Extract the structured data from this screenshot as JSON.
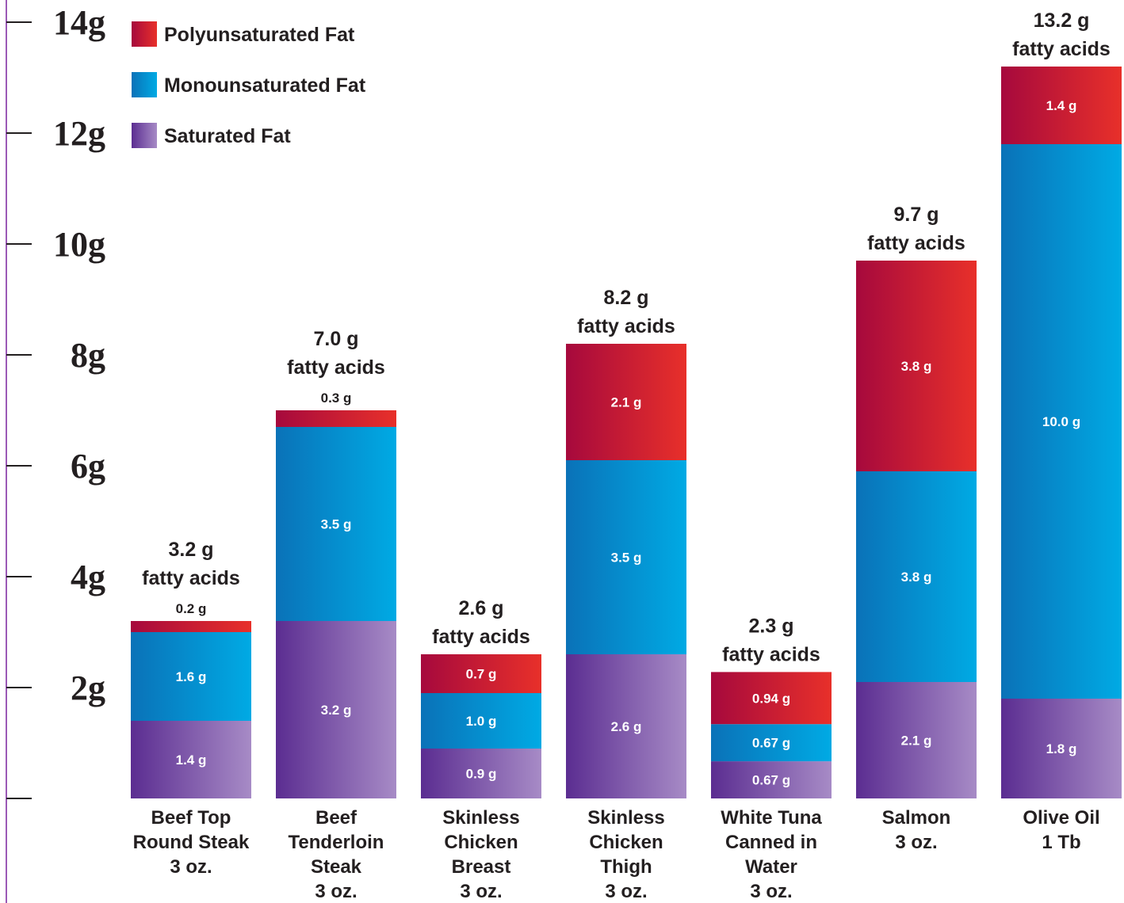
{
  "chart_data": {
    "type": "bar",
    "stacked": true,
    "title": "",
    "xlabel": "",
    "ylabel": "",
    "ylim": [
      0,
      14
    ],
    "ytick_labels": [
      "2g",
      "4g",
      "6g",
      "8g",
      "10g",
      "12g",
      "14g"
    ],
    "grid": false,
    "legend_position": "top-left",
    "categories": [
      [
        "Beef Top",
        "Round Steak",
        "3 oz."
      ],
      [
        "Beef",
        "Tenderloin",
        "Steak",
        "3 oz."
      ],
      [
        "Skinless",
        "Chicken",
        "Breast",
        "3 oz."
      ],
      [
        "Skinless",
        "Chicken",
        "Thigh",
        "3 oz."
      ],
      [
        "White Tuna",
        "Canned in",
        "Water",
        "3 oz."
      ],
      [
        "Salmon",
        "3 oz."
      ],
      [
        "Olive Oil",
        "1 Tb"
      ]
    ],
    "series": [
      {
        "name": "Saturated Fat",
        "color_dark": "#5b2d91",
        "color_light": "#a78bc6",
        "values": [
          1.4,
          3.2,
          0.9,
          2.6,
          0.67,
          2.1,
          1.8
        ],
        "labels": [
          "1.4 g",
          "3.2 g",
          "0.9 g",
          "2.6 g",
          "0.67 g",
          "2.1 g",
          "1.8 g"
        ]
      },
      {
        "name": "Monounsaturated Fat",
        "color_dark": "#0a72b8",
        "color_light": "#00aae4",
        "values": [
          1.6,
          3.5,
          1.0,
          3.5,
          0.67,
          3.8,
          10.0
        ],
        "labels": [
          "1.6 g",
          "3.5 g",
          "1.0 g",
          "3.5 g",
          "0.67 g",
          "3.8 g",
          "10.0 g"
        ]
      },
      {
        "name": "Polyunsaturated Fat",
        "color_dark": "#a6093d",
        "color_light": "#e8302a",
        "values": [
          0.2,
          0.3,
          0.7,
          2.1,
          0.94,
          3.8,
          1.4
        ],
        "labels": [
          "0.2 g",
          "0.3 g",
          "0.7 g",
          "2.1 g",
          "0.94 g",
          "3.8 g",
          "1.4 g"
        ]
      }
    ],
    "totals": [
      [
        "3.2 g",
        "fatty acids"
      ],
      [
        "7.0 g",
        "fatty acids"
      ],
      [
        "2.6 g",
        "fatty acids"
      ],
      [
        "8.2 g",
        "fatty acids"
      ],
      [
        "2.3 g",
        "fatty acids"
      ],
      [
        "9.7 g",
        "fatty acids"
      ],
      [
        "13.2 g",
        "fatty acids"
      ]
    ],
    "total_values": [
      3.2,
      7.0,
      2.6,
      8.2,
      2.3,
      9.7,
      13.2
    ],
    "legend_order": [
      "Polyunsaturated Fat",
      "Monounsaturated Fat",
      "Saturated Fat"
    ],
    "axis_color": "#9b59b6"
  }
}
